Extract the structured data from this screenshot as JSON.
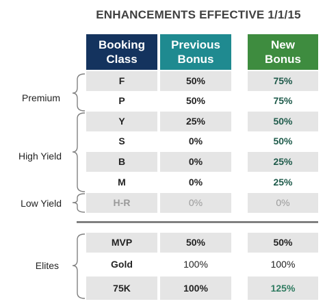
{
  "title": "ENHANCEMENTS EFFECTIVE 1/1/15",
  "headers": {
    "booking": [
      "Booking",
      "Class"
    ],
    "previous": [
      "Previous",
      "Bonus"
    ],
    "new": [
      "New",
      "Bonus"
    ]
  },
  "groups": {
    "premium": "Premium",
    "high_yield": "High Yield",
    "low_yield": "Low Yield",
    "elites": "Elites"
  },
  "rows": [
    {
      "class": "F",
      "previous": "50%",
      "new": "75%"
    },
    {
      "class": "P",
      "previous": "50%",
      "new": "75%"
    },
    {
      "class": "Y",
      "previous": "25%",
      "new": "50%"
    },
    {
      "class": "S",
      "previous": "0%",
      "new": "50%"
    },
    {
      "class": "B",
      "previous": "0%",
      "new": "25%"
    },
    {
      "class": "M",
      "previous": "0%",
      "new": "25%"
    },
    {
      "class": "H-R",
      "previous": "0%",
      "new": "0%"
    }
  ],
  "elite_rows": [
    {
      "status": "MVP",
      "previous": "50%",
      "new": "50%"
    },
    {
      "status": "Gold",
      "previous": "100%",
      "new": "100%"
    },
    {
      "status": "75K",
      "previous": "100%",
      "new": "125%"
    }
  ],
  "colors": {
    "booking_header": "#14335e",
    "previous_header": "#1f8a90",
    "new_header": "#3e8c3f",
    "row_shade": "#e5e5e5",
    "new_value_text": "#1e5a4a"
  }
}
